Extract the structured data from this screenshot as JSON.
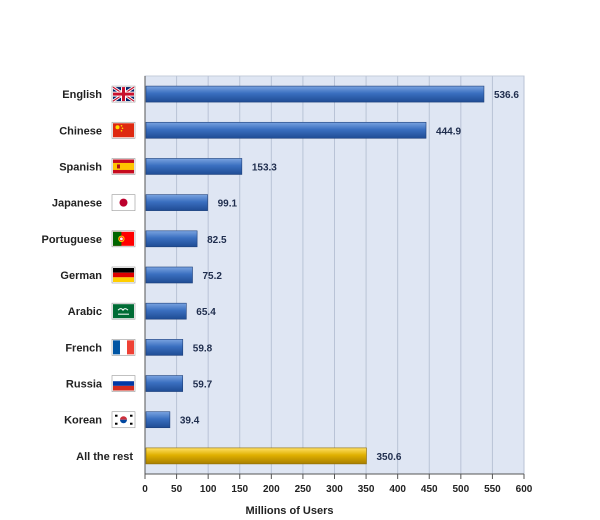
{
  "chart_data": {
    "type": "bar",
    "orientation": "horizontal",
    "title": "",
    "xlabel": "Millions of Users",
    "ylabel": "",
    "xlim": [
      0,
      600
    ],
    "ticks": [
      "0",
      "50",
      "100",
      "150",
      "200",
      "250",
      "300",
      "350",
      "400",
      "450",
      "500",
      "550",
      "600"
    ],
    "grid": true,
    "categories": [
      "English",
      "Chinese",
      "Spanish",
      "Japanese",
      "Portuguese",
      "German",
      "Arabic",
      "French",
      "Russia",
      "Korean",
      "All the rest"
    ],
    "values": [
      536.6,
      444.9,
      153.3,
      99.1,
      82.5,
      75.2,
      65.4,
      59.8,
      59.7,
      39.4,
      350.6
    ],
    "value_labels": [
      "536.6",
      "444.9",
      "153.3",
      "99.1",
      "82.5",
      "75.2",
      "65.4",
      "59.8",
      "59.7",
      "39.4",
      "350.6"
    ],
    "flag_icons": [
      "uk-flag-icon",
      "china-flag-icon",
      "spain-flag-icon",
      "japan-flag-icon",
      "portugal-flag-icon",
      "germany-flag-icon",
      "saudi-arabia-flag-icon",
      "france-flag-icon",
      "russia-flag-icon",
      "south-korea-flag-icon",
      ""
    ],
    "colors": {
      "bar": "#3a6fc0",
      "bar_highlight": "#e0b000",
      "plot_background": "#dfe6f3",
      "grid": "#b9c3d6"
    }
  }
}
